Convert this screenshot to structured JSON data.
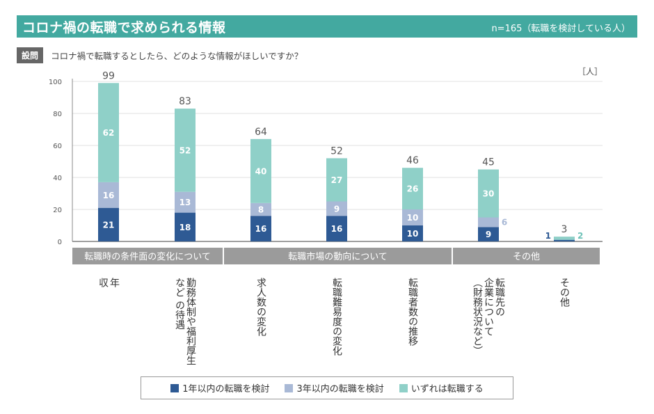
{
  "header": {
    "title": "コロナ禍の転職で求められる情報",
    "sample": "n=165（転職を検討している人）"
  },
  "question": {
    "label": "設問",
    "text": "コロナ禍で転職するとしたら、どのような情報がほしいですか？"
  },
  "colors": {
    "header_bg": "#43a9a0",
    "series": [
      "#2e5a94",
      "#a9b9d6",
      "#8fd0c8"
    ],
    "group_bg": "#9b9b9b"
  },
  "chart_data": {
    "type": "bar",
    "stacked": true,
    "unit": "［人］",
    "ylim": [
      0,
      100
    ],
    "yticks": [
      0,
      20,
      40,
      60,
      80,
      100
    ],
    "grid": true,
    "legend_position": "bottom",
    "categories": [
      "年収",
      "勤務体制や福利厚生など の待遇",
      "求人数の変化",
      "転職難易度の変化",
      "転職者数の推移",
      "転職先の企業について（財務状況など）",
      "その他"
    ],
    "category_lines": [
      [
        "年",
        "収"
      ],
      [
        "勤務体制や福利厚生",
        "など の待遇"
      ],
      [
        "求人数の変化"
      ],
      [
        "転職難易度の変化"
      ],
      [
        "転職者数の推移"
      ],
      [
        "転職先の",
        "企業について",
        "（財務状況など）"
      ],
      [
        "その他"
      ]
    ],
    "groups": [
      {
        "label": "転職時の条件面の変化について",
        "categories": [
          0,
          1
        ]
      },
      {
        "label": "転職市場の動向について",
        "categories": [
          2,
          3,
          4
        ]
      },
      {
        "label": "その他",
        "categories": [
          5,
          6
        ]
      }
    ],
    "series": [
      {
        "name": "1年以内の転職を検討",
        "values": [
          21,
          18,
          16,
          16,
          10,
          9,
          1
        ]
      },
      {
        "name": "3年以内の転職を検討",
        "values": [
          16,
          13,
          8,
          9,
          10,
          6,
          0
        ]
      },
      {
        "name": "いずれは転職する",
        "values": [
          62,
          52,
          40,
          27,
          26,
          30,
          2
        ]
      }
    ],
    "totals": [
      99,
      83,
      64,
      52,
      46,
      45,
      3
    ]
  }
}
